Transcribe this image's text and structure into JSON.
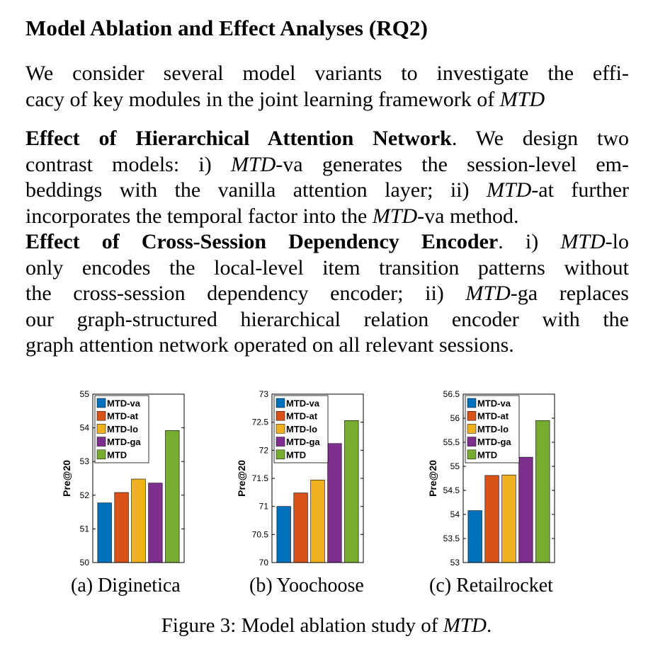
{
  "section": {
    "title": "Model Ablation and Effect Analyses (RQ2)"
  },
  "intro": {
    "line1": "We consider several model variants to investigate the effi-",
    "line2_a": "cacy of key modules in the joint learning framework of ",
    "line2_b": "MTD"
  },
  "han": {
    "heading": "Effect of Hierarchical Attention Network",
    "line1_rest": ". We design two",
    "line2_a": "contrast models: i) ",
    "line2_b": "MTD",
    "line2_c": "-va generates the session-level em-",
    "line3_a": "beddings with the vanilla attention layer; ii) ",
    "line3_b": "MTD",
    "line3_c": "-at further",
    "line4_a": "incorporates the temporal factor into the ",
    "line4_b": "MTD",
    "line4_c": "-va method."
  },
  "csde": {
    "heading": "Effect of Cross-Session Dependency Encoder",
    "line1_a": ". i) ",
    "line1_b": "MTD",
    "line1_c": "-lo",
    "line2": "only encodes the local-level item transition patterns without",
    "line3_a": "the cross-session dependency encoder; ii) ",
    "line3_b": "MTD",
    "line3_c": "-ga replaces",
    "line4": "our graph-structured hierarchical relation encoder with the",
    "line5": "graph attention network operated on all relevant sessions."
  },
  "figure": {
    "caption_a": "Figure 3: Model ablation study of ",
    "caption_b": "MTD",
    "caption_c": "."
  },
  "colors": {
    "MTD-va": "#0072BD",
    "MTD-at": "#D95319",
    "MTD-lo": "#EDB120",
    "MTD-ga": "#7E2F8E",
    "MTD": "#77AC30"
  },
  "chart_data": [
    {
      "type": "bar",
      "caption": "(a) Diginetica",
      "categories": [
        "MTD-va",
        "MTD-at",
        "MTD-lo",
        "MTD-ga",
        "MTD"
      ],
      "values": [
        51.77,
        52.08,
        52.48,
        52.36,
        53.92
      ],
      "ylabel": "Pre@20",
      "ylim": [
        50,
        55
      ],
      "yticks": [
        "50",
        "51",
        "52",
        "53",
        "54",
        "55"
      ],
      "legend": [
        "MTD-va",
        "MTD-at",
        "MTD-lo",
        "MTD-ga",
        "MTD"
      ],
      "legend_position": "top-left",
      "grid": false
    },
    {
      "type": "bar",
      "caption": "(b) Yoochoose",
      "categories": [
        "MTD-va",
        "MTD-at",
        "MTD-lo",
        "MTD-ga",
        "MTD"
      ],
      "values": [
        71.0,
        71.24,
        71.47,
        72.12,
        72.53
      ],
      "ylabel": "Pre@20",
      "ylim": [
        70,
        73
      ],
      "yticks": [
        "70",
        "70.5",
        "71",
        "71.5",
        "72",
        "72.5",
        "73"
      ],
      "legend": [
        "MTD-va",
        "MTD-at",
        "MTD-lo",
        "MTD-ga",
        "MTD"
      ],
      "legend_position": "top-left",
      "grid": false
    },
    {
      "type": "bar",
      "caption": "(c) Retailrocket",
      "categories": [
        "MTD-va",
        "MTD-at",
        "MTD-lo",
        "MTD-ga",
        "MTD"
      ],
      "values": [
        54.08,
        54.81,
        54.82,
        55.19,
        55.95
      ],
      "ylabel": "Pre@20",
      "ylim": [
        53,
        56.5
      ],
      "yticks": [
        "53",
        "53.5",
        "54",
        "54.5",
        "55",
        "55.5",
        "56",
        "56.5"
      ],
      "legend": [
        "MTD-va",
        "MTD-at",
        "MTD-lo",
        "MTD-ga",
        "MTD"
      ],
      "legend_position": "top-left",
      "grid": false
    }
  ]
}
